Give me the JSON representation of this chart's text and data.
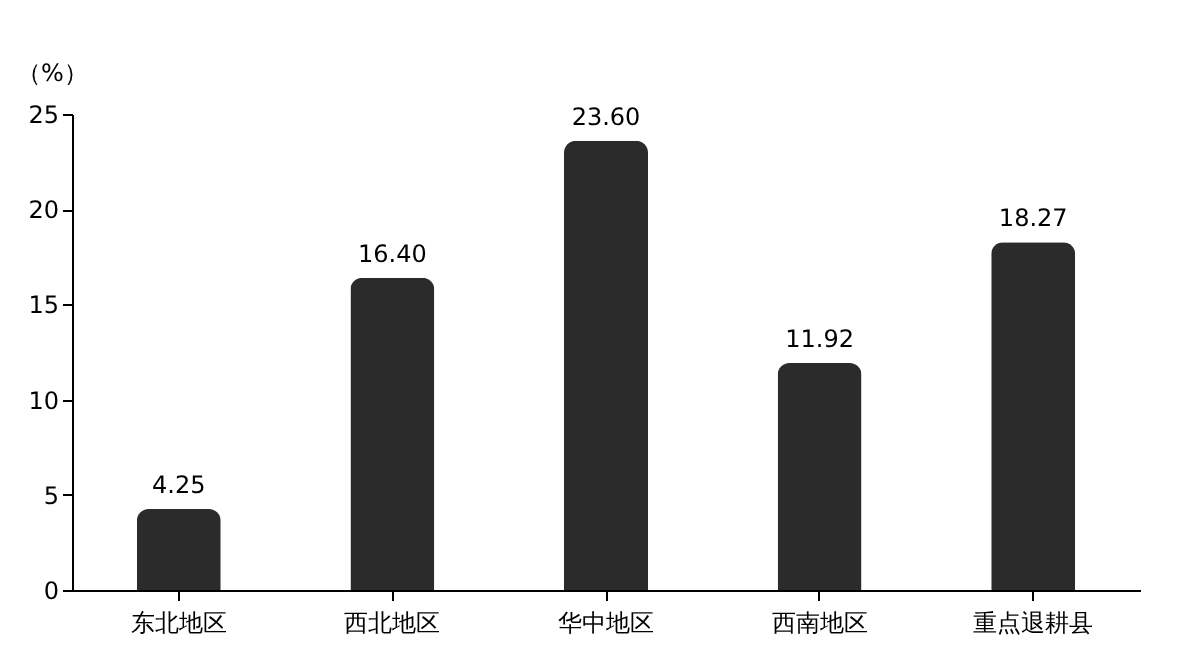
{
  "chart_data": {
    "type": "bar",
    "ylabel": "（%）",
    "categories": [
      "东北地区",
      "西北地区",
      "华中地区",
      "西南地区",
      "重点退耕县"
    ],
    "values": [
      4.25,
      16.4,
      23.6,
      11.92,
      18.27
    ],
    "value_labels": [
      "4.25",
      "16.40",
      "23.60",
      "11.92",
      "18.27"
    ],
    "color": "#2b2b2b",
    "ylim": [
      0,
      25
    ],
    "yticks": [
      0,
      5,
      10,
      15,
      20,
      25
    ],
    "grid": false
  }
}
